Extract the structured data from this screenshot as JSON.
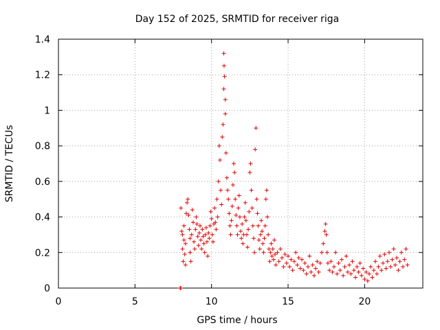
{
  "chart_data": {
    "type": "scatter",
    "title": "Day 152 of 2025, SRMTID for receiver riga",
    "xlabel": "GPS time / hours",
    "ylabel": "SRMTID / TECUs",
    "xlim": [
      0,
      23.8
    ],
    "ylim": [
      0,
      1.4
    ],
    "xticks": [
      0,
      5,
      10,
      15,
      20
    ],
    "xtick_labels": [
      "0",
      "5",
      "10",
      "15",
      "20"
    ],
    "yticks": [
      0,
      0.2,
      0.4,
      0.6,
      0.8,
      1.0,
      1.2,
      1.4
    ],
    "ytick_labels": [
      "0",
      "0.2",
      "0.4",
      "0.6",
      "0.8",
      "1",
      "1.2",
      "1.4"
    ],
    "grid": true,
    "marker": "+",
    "color": "#e00000",
    "series": [
      {
        "name": "SRMTID",
        "points": [
          [
            7.95,
            0.0
          ],
          [
            8.0,
            0.0
          ],
          [
            8.0,
            0.45
          ],
          [
            8.05,
            0.32
          ],
          [
            8.1,
            0.3
          ],
          [
            8.1,
            0.22
          ],
          [
            8.15,
            0.15
          ],
          [
            8.2,
            0.27
          ],
          [
            8.2,
            0.35
          ],
          [
            8.25,
            0.19
          ],
          [
            8.3,
            0.13
          ],
          [
            8.3,
            0.25
          ],
          [
            8.35,
            0.42
          ],
          [
            8.4,
            0.48
          ],
          [
            8.45,
            0.5
          ],
          [
            8.5,
            0.41
          ],
          [
            8.55,
            0.33
          ],
          [
            8.6,
            0.2
          ],
          [
            8.6,
            0.28
          ],
          [
            8.65,
            0.15
          ],
          [
            8.7,
            0.3
          ],
          [
            8.75,
            0.44
          ],
          [
            8.8,
            0.37
          ],
          [
            8.85,
            0.26
          ],
          [
            8.9,
            0.22
          ],
          [
            8.95,
            0.33
          ],
          [
            9.0,
            0.4
          ],
          [
            9.05,
            0.36
          ],
          [
            9.1,
            0.29
          ],
          [
            9.15,
            0.24
          ],
          [
            9.2,
            0.31
          ],
          [
            9.25,
            0.35
          ],
          [
            9.3,
            0.27
          ],
          [
            9.35,
            0.22
          ],
          [
            9.4,
            0.33
          ],
          [
            9.45,
            0.29
          ],
          [
            9.5,
            0.25
          ],
          [
            9.55,
            0.2
          ],
          [
            9.6,
            0.3
          ],
          [
            9.65,
            0.34
          ],
          [
            9.7,
            0.26
          ],
          [
            9.75,
            0.18
          ],
          [
            9.8,
            0.31
          ],
          [
            9.85,
            0.28
          ],
          [
            9.9,
            0.35
          ],
          [
            9.95,
            0.43
          ],
          [
            10.0,
            0.39
          ],
          [
            10.05,
            0.3
          ],
          [
            10.1,
            0.26
          ],
          [
            10.15,
            0.36
          ],
          [
            10.2,
            0.45
          ],
          [
            10.25,
            0.37
          ],
          [
            10.3,
            0.33
          ],
          [
            10.35,
            0.5
          ],
          [
            10.4,
            0.4
          ],
          [
            10.45,
            0.6
          ],
          [
            10.5,
            0.8
          ],
          [
            10.55,
            0.72
          ],
          [
            10.6,
            0.55
          ],
          [
            10.65,
            0.47
          ],
          [
            10.7,
            0.85
          ],
          [
            10.75,
            0.92
          ],
          [
            10.8,
            1.12
          ],
          [
            10.8,
            1.32
          ],
          [
            10.82,
            1.25
          ],
          [
            10.85,
            1.19
          ],
          [
            10.9,
            1.06
          ],
          [
            10.9,
            0.98
          ],
          [
            10.95,
            0.76
          ],
          [
            11.0,
            0.62
          ],
          [
            11.05,
            0.55
          ],
          [
            11.1,
            0.5
          ],
          [
            11.15,
            0.42
          ],
          [
            11.2,
            0.35
          ],
          [
            11.25,
            0.3
          ],
          [
            11.3,
            0.38
          ],
          [
            11.35,
            0.46
          ],
          [
            11.4,
            0.58
          ],
          [
            11.45,
            0.7
          ],
          [
            11.5,
            0.65
          ],
          [
            11.55,
            0.5
          ],
          [
            11.6,
            0.41
          ],
          [
            11.65,
            0.35
          ],
          [
            11.7,
            0.3
          ],
          [
            11.75,
            0.45
          ],
          [
            11.8,
            0.52
          ],
          [
            11.85,
            0.4
          ],
          [
            11.9,
            0.32
          ],
          [
            11.95,
            0.28
          ],
          [
            12.0,
            0.36
          ],
          [
            12.05,
            0.25
          ],
          [
            12.1,
            0.3
          ],
          [
            12.15,
            0.4
          ],
          [
            12.2,
            0.48
          ],
          [
            12.25,
            0.38
          ],
          [
            12.3,
            0.3
          ],
          [
            12.35,
            0.23
          ],
          [
            12.4,
            0.33
          ],
          [
            12.45,
            0.43
          ],
          [
            12.5,
            0.65
          ],
          [
            12.55,
            0.7
          ],
          [
            12.6,
            0.55
          ],
          [
            12.65,
            0.45
          ],
          [
            12.7,
            0.35
          ],
          [
            12.75,
            0.28
          ],
          [
            12.8,
            0.2
          ],
          [
            12.85,
            0.78
          ],
          [
            12.9,
            0.9
          ],
          [
            12.95,
            0.5
          ],
          [
            13.0,
            0.42
          ],
          [
            13.05,
            0.35
          ],
          [
            13.1,
            0.27
          ],
          [
            13.15,
            0.22
          ],
          [
            13.2,
            0.3
          ],
          [
            13.25,
            0.38
          ],
          [
            13.3,
            0.32
          ],
          [
            13.35,
            0.25
          ],
          [
            13.4,
            0.2
          ],
          [
            13.45,
            0.28
          ],
          [
            13.5,
            0.35
          ],
          [
            13.55,
            0.5
          ],
          [
            13.6,
            0.55
          ],
          [
            13.65,
            0.4
          ],
          [
            13.7,
            0.3
          ],
          [
            13.75,
            0.22
          ],
          [
            13.8,
            0.15
          ],
          [
            13.85,
            0.2
          ],
          [
            13.9,
            0.25
          ],
          [
            13.95,
            0.18
          ],
          [
            14.0,
            0.22
          ],
          [
            14.05,
            0.16
          ],
          [
            14.1,
            0.27
          ],
          [
            14.15,
            0.19
          ],
          [
            14.2,
            0.13
          ],
          [
            14.3,
            0.2
          ],
          [
            14.4,
            0.15
          ],
          [
            14.5,
            0.22
          ],
          [
            14.6,
            0.17
          ],
          [
            14.7,
            0.12
          ],
          [
            14.8,
            0.19
          ],
          [
            14.9,
            0.14
          ],
          [
            15.0,
            0.18
          ],
          [
            15.1,
            0.12
          ],
          [
            15.2,
            0.16
          ],
          [
            15.3,
            0.1
          ],
          [
            15.4,
            0.15
          ],
          [
            15.5,
            0.2
          ],
          [
            15.6,
            0.13
          ],
          [
            15.7,
            0.17
          ],
          [
            15.8,
            0.11
          ],
          [
            15.9,
            0.16
          ],
          [
            16.0,
            0.1
          ],
          [
            16.1,
            0.14
          ],
          [
            16.2,
            0.08
          ],
          [
            16.3,
            0.12
          ],
          [
            16.4,
            0.18
          ],
          [
            16.5,
            0.09
          ],
          [
            16.6,
            0.13
          ],
          [
            16.7,
            0.07
          ],
          [
            16.8,
            0.11
          ],
          [
            16.9,
            0.15
          ],
          [
            17.0,
            0.09
          ],
          [
            17.1,
            0.14
          ],
          [
            17.2,
            0.2
          ],
          [
            17.3,
            0.25
          ],
          [
            17.4,
            0.32
          ],
          [
            17.45,
            0.36
          ],
          [
            17.5,
            0.3
          ],
          [
            17.55,
            0.2
          ],
          [
            17.6,
            0.14
          ],
          [
            17.7,
            0.1
          ],
          [
            17.8,
            0.15
          ],
          [
            17.9,
            0.09
          ],
          [
            18.0,
            0.12
          ],
          [
            18.1,
            0.2
          ],
          [
            18.2,
            0.08
          ],
          [
            18.3,
            0.14
          ],
          [
            18.4,
            0.1
          ],
          [
            18.5,
            0.16
          ],
          [
            18.6,
            0.07
          ],
          [
            18.7,
            0.12
          ],
          [
            18.8,
            0.18
          ],
          [
            18.9,
            0.09
          ],
          [
            19.0,
            0.13
          ],
          [
            19.1,
            0.08
          ],
          [
            19.2,
            0.15
          ],
          [
            19.3,
            0.1
          ],
          [
            19.4,
            0.06
          ],
          [
            19.5,
            0.12
          ],
          [
            19.6,
            0.09
          ],
          [
            19.7,
            0.14
          ],
          [
            19.8,
            0.07
          ],
          [
            19.9,
            0.11
          ],
          [
            20.0,
            0.05
          ],
          [
            20.1,
            0.09
          ],
          [
            20.2,
            0.04
          ],
          [
            20.3,
            0.08
          ],
          [
            20.4,
            0.12
          ],
          [
            20.5,
            0.06
          ],
          [
            20.6,
            0.1
          ],
          [
            20.7,
            0.15
          ],
          [
            20.8,
            0.08
          ],
          [
            20.9,
            0.12
          ],
          [
            21.0,
            0.18
          ],
          [
            21.1,
            0.1
          ],
          [
            21.2,
            0.14
          ],
          [
            21.3,
            0.19
          ],
          [
            21.4,
            0.11
          ],
          [
            21.5,
            0.15
          ],
          [
            21.6,
            0.2
          ],
          [
            21.7,
            0.12
          ],
          [
            21.8,
            0.16
          ],
          [
            21.9,
            0.22
          ],
          [
            22.0,
            0.13
          ],
          [
            22.1,
            0.17
          ],
          [
            22.2,
            0.1
          ],
          [
            22.3,
            0.15
          ],
          [
            22.4,
            0.2
          ],
          [
            22.5,
            0.12
          ],
          [
            22.6,
            0.16
          ],
          [
            22.7,
            0.22
          ],
          [
            22.8,
            0.13
          ]
        ]
      }
    ]
  }
}
